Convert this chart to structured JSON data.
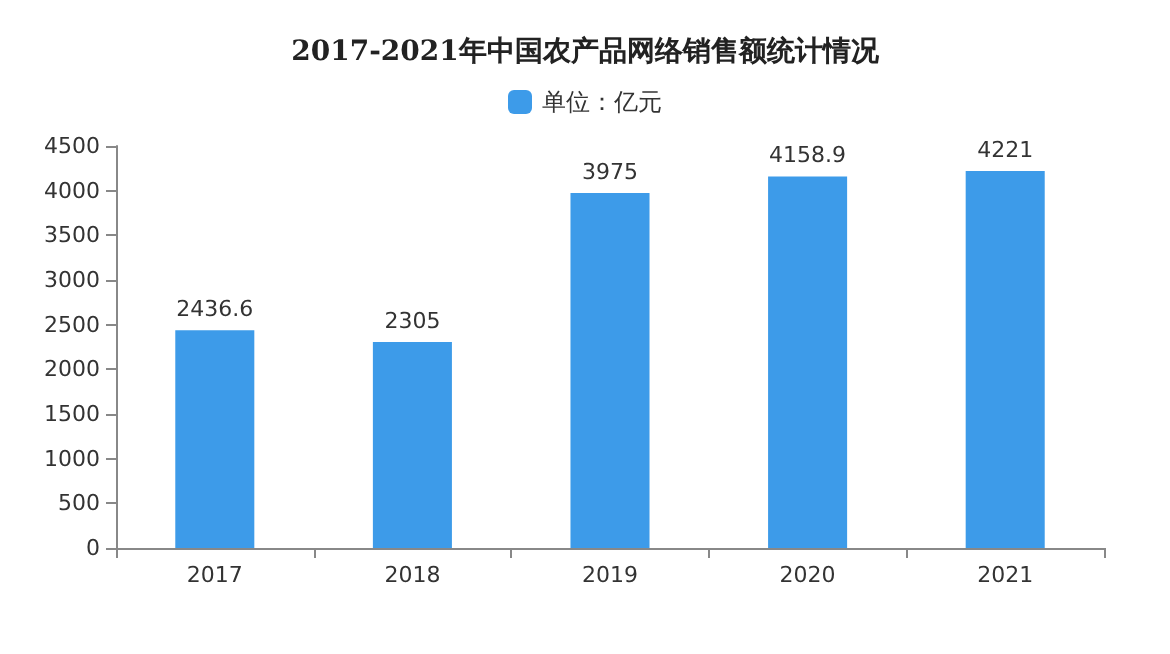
{
  "chart_data": {
    "type": "bar",
    "title": "2017-2021年中国农产品网络销售额统计情况",
    "categories": [
      "2017",
      "2018",
      "2019",
      "2020",
      "2021"
    ],
    "series": [
      {
        "name": "单位：亿元",
        "color": "#3d9be9",
        "values": [
          2436.6,
          2305,
          3975,
          4158.9,
          4221
        ]
      }
    ],
    "ylim": [
      0,
      4500
    ],
    "yticks": [
      0,
      500,
      1000,
      1500,
      2000,
      2500,
      3000,
      3500,
      4000,
      4500
    ],
    "grid": false,
    "legend": "top",
    "data_labels": true
  }
}
